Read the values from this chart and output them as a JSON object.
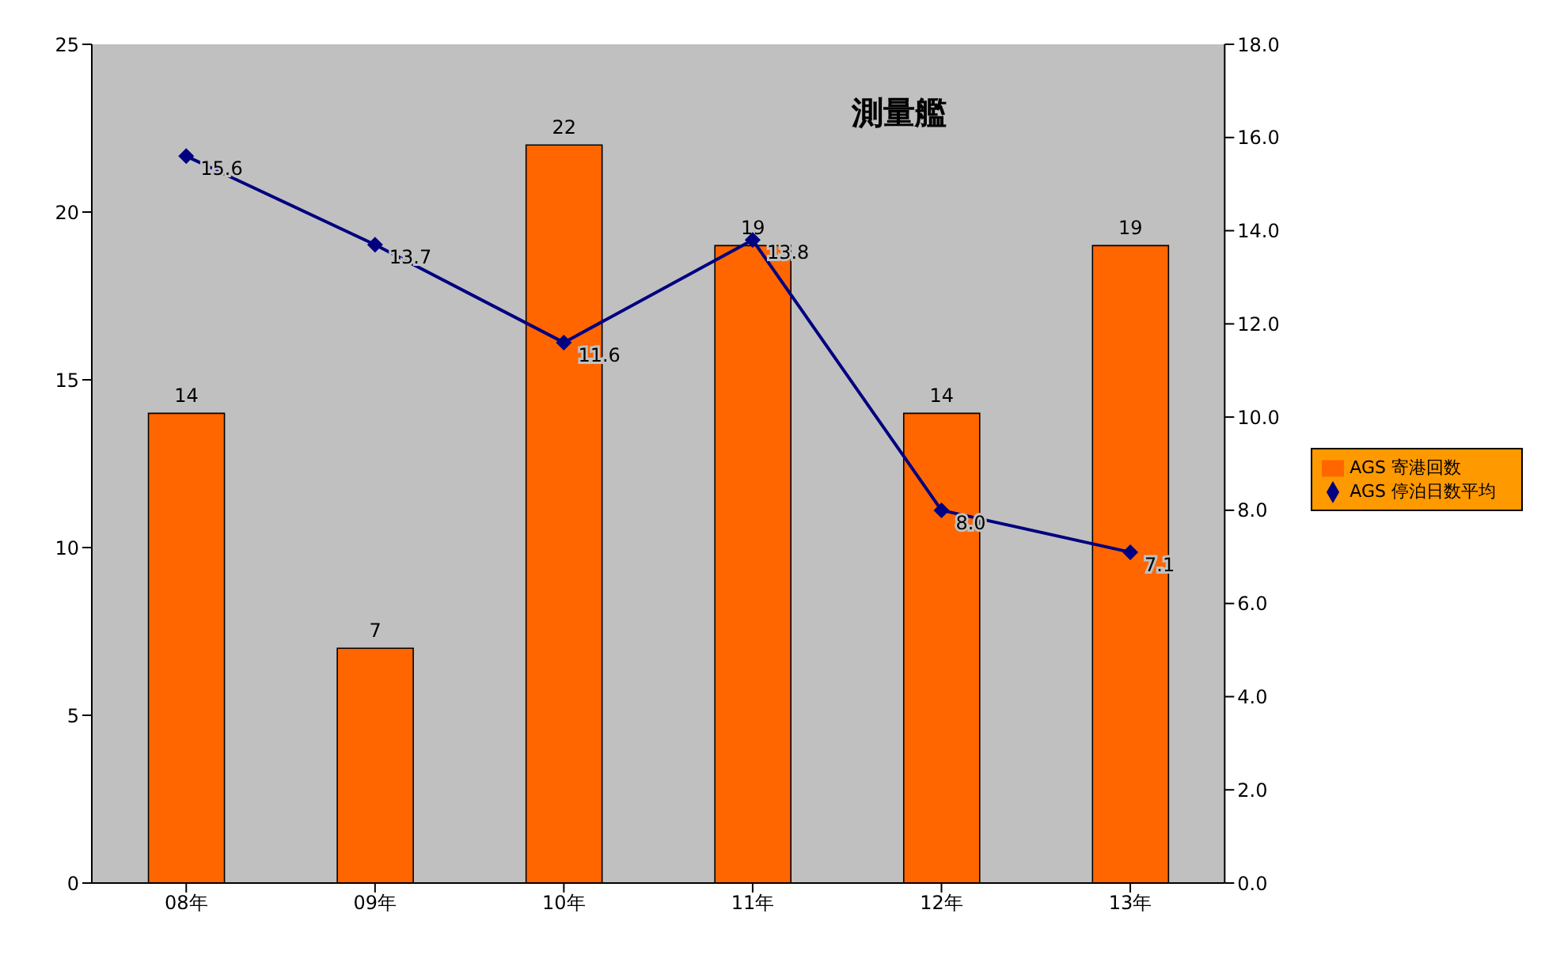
{
  "chart_data": {
    "type": "bar",
    "title": "測量艦",
    "categories": [
      "08年",
      "09年",
      "10年",
      "11年",
      "12年",
      "13年"
    ],
    "series": [
      {
        "name": "AGS 寄港回数",
        "color": "#ff6600",
        "values": [
          14,
          7,
          22,
          19,
          14,
          19
        ],
        "value_labels": [
          "14",
          "7",
          "22",
          "19",
          "14",
          "19"
        ]
      },
      {
        "name": "AGS 停泊日数平均",
        "type": "line",
        "axis": "y2",
        "color": "#000080",
        "marker": "diamond",
        "values": [
          15.6,
          13.7,
          11.6,
          13.8,
          8.0,
          7.1
        ],
        "value_labels": [
          "15.6",
          "13.7",
          "11.6",
          "13.8",
          "8.0",
          "7.1"
        ]
      }
    ],
    "ylim": [
      0,
      25
    ],
    "yticks": [
      0,
      5,
      10,
      15,
      20,
      25
    ],
    "y2lim": [
      0,
      18
    ],
    "y2ticks": [
      {
        "value": 0,
        "label": "0.0"
      },
      {
        "value": 2,
        "label": "2.0"
      },
      {
        "value": 4,
        "label": "4.0"
      },
      {
        "value": 6,
        "label": "6.0"
      },
      {
        "value": 8,
        "label": "8.0"
      },
      {
        "value": 10,
        "label": "10.0"
      },
      {
        "value": 12,
        "label": "12.0"
      },
      {
        "value": 14,
        "label": "14.0"
      },
      {
        "value": 16,
        "label": "16.0"
      },
      {
        "value": 18,
        "label": "18.0"
      }
    ],
    "grid": false,
    "legend": "right"
  }
}
